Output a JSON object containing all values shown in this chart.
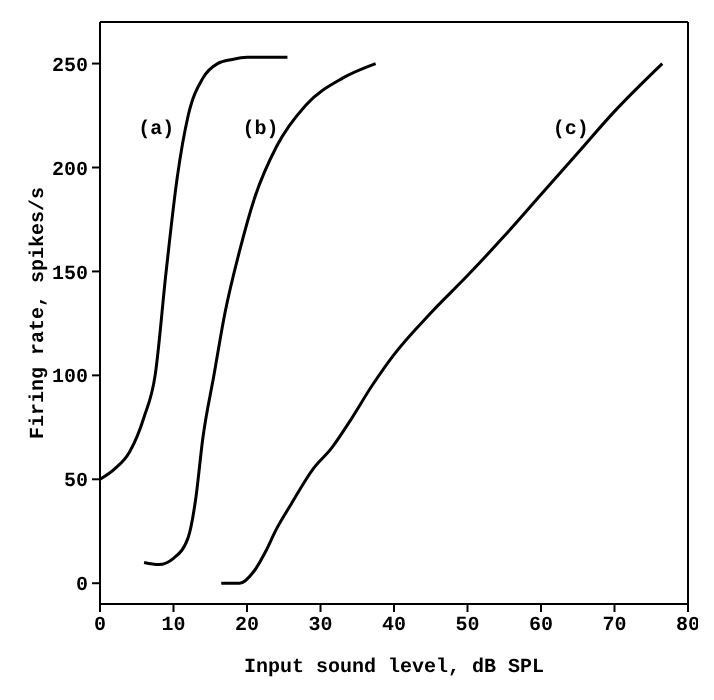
{
  "chart_data": {
    "type": "line",
    "xlabel": "Input sound level, dB SPL",
    "ylabel": "Firing rate, spikes/s",
    "xlim": [
      0,
      80
    ],
    "xticks": [
      0,
      10,
      20,
      30,
      40,
      50,
      60,
      70,
      80
    ],
    "ylim": [
      -10,
      270
    ],
    "yticks": [
      0,
      50,
      100,
      150,
      200,
      250
    ],
    "marker": "none",
    "line_style": "solid",
    "series": [
      {
        "name": "(a)",
        "color": "#000000",
        "x": [
          0,
          2,
          4,
          6,
          7.5,
          9,
          10.5,
          12,
          14,
          16,
          18,
          20,
          25.5
        ],
        "values": [
          50,
          55,
          63,
          80,
          100,
          150,
          195,
          225,
          243,
          250,
          252,
          253,
          253
        ]
      },
      {
        "name": "(b)",
        "color": "#000000",
        "x": [
          6,
          8,
          10,
          12,
          13,
          14,
          15.5,
          17,
          19,
          21,
          24,
          28,
          33,
          37.5
        ],
        "values": [
          10,
          9,
          12,
          22,
          40,
          70,
          100,
          130,
          160,
          185,
          210,
          230,
          243,
          250
        ]
      },
      {
        "name": "(c)",
        "color": "#000000",
        "x": [
          16.5,
          19,
          21,
          22.5,
          24,
          26,
          29,
          31.5,
          34,
          37,
          40,
          45,
          50,
          55,
          60,
          65,
          70,
          76.5
        ],
        "values": [
          0,
          0,
          6,
          15,
          26,
          38,
          55,
          65,
          78,
          95,
          110,
          130,
          148,
          167,
          187,
          207,
          227,
          250
        ]
      }
    ]
  }
}
